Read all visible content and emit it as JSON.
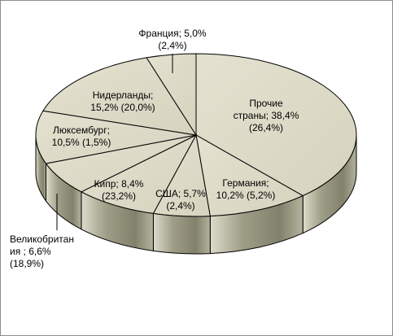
{
  "chart_data": {
    "type": "pie",
    "title": "",
    "slices": [
      {
        "name": "Прочие страны",
        "label_lines": [
          "Прочие",
          "страны; 38,4%",
          "(26,4%)"
        ],
        "value": 38.4,
        "secondary": "26,4%"
      },
      {
        "name": "Германия",
        "label_lines": [
          "Германия;",
          "10,2% (5,2%)"
        ],
        "value": 10.2,
        "secondary": "5,2%"
      },
      {
        "name": "США",
        "label_lines": [
          "США; 5,7%",
          "(2,4%)"
        ],
        "value": 5.7,
        "secondary": "2,4%"
      },
      {
        "name": "Кипр",
        "label_lines": [
          "Кипр; 8,4%",
          "(23,2%)"
        ],
        "value": 8.4,
        "secondary": "23,2%"
      },
      {
        "name": "Великобритания",
        "label_lines": [
          "Великобритан",
          "ия ; 6,6%",
          "(18,9%)"
        ],
        "value": 6.6,
        "secondary": "18,9%"
      },
      {
        "name": "Люксембург",
        "label_lines": [
          "Люксембург;",
          "10,5% (1,5%)"
        ],
        "value": 10.5,
        "secondary": "1,5%"
      },
      {
        "name": "Нидерланды",
        "label_lines": [
          "Нидерланды;",
          "15,2%  (20,0%)"
        ],
        "value": 15.2,
        "secondary": "20,0%"
      },
      {
        "name": "Франция",
        "label_lines": [
          "Франция; 5,0%",
          "(2,4%)"
        ],
        "value": 5.0,
        "secondary": "2,4%"
      }
    ],
    "style": {
      "face_color": "#dedbc8",
      "side_color": "#a3a28c",
      "edge_color": "#000000",
      "three_d": true
    }
  }
}
